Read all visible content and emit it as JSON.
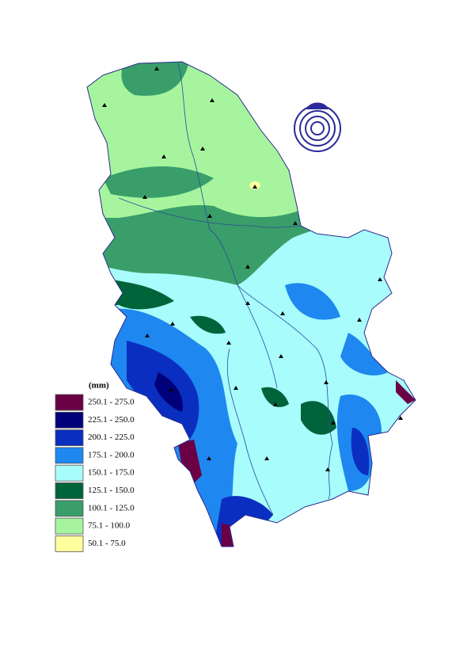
{
  "legend": {
    "title": "(mm)",
    "items": [
      {
        "label": "250.1 - 275.0",
        "color": "#6b0045"
      },
      {
        "label": "225.1 - 250.0",
        "color": "#00007a"
      },
      {
        "label": "200.1 - 225.0",
        "color": "#0a2fc0"
      },
      {
        "label": "175.1 - 200.0",
        "color": "#1e88f0"
      },
      {
        "label": "150.1 - 175.0",
        "color": "#a8fcfc"
      },
      {
        "label": "125.1 - 150.0",
        "color": "#00643a"
      },
      {
        "label": "100.1 - 125.0",
        "color": "#3a9e6a"
      },
      {
        "label": "75.1 - 100.0",
        "color": "#a6f59e"
      },
      {
        "label": "50.1 - 75.0",
        "color": "#ffff9e"
      }
    ]
  }
}
